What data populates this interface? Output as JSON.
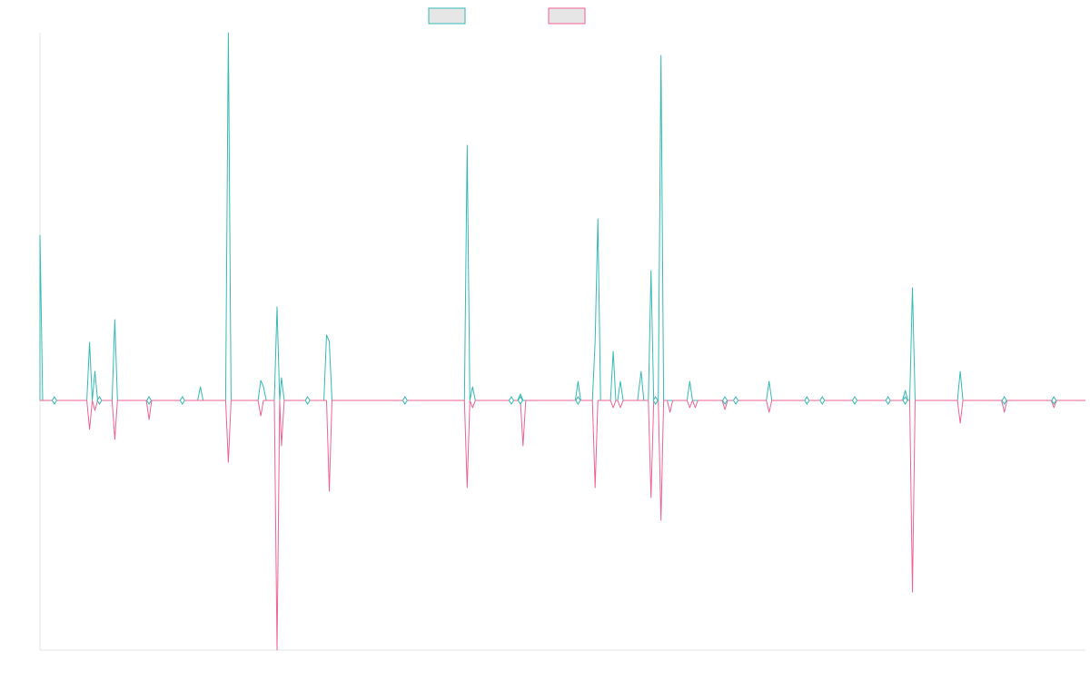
{
  "chart_data": {
    "type": "line",
    "title": "",
    "xlabel": "",
    "ylabel": "",
    "grid": false,
    "legend_position": "top-center",
    "x_range": [
      0,
      1160
    ],
    "ylim": [
      -275,
      405
    ],
    "baseline": 0,
    "series": [
      {
        "name": "",
        "color": "#36b9b5",
        "fill": "#e6e6e6",
        "points": [
          [
            0,
            0
          ],
          [
            0,
            182
          ],
          [
            3,
            0
          ],
          [
            52,
            0
          ],
          [
            55,
            64
          ],
          [
            58,
            0
          ],
          [
            61,
            32
          ],
          [
            64,
            0
          ],
          [
            80,
            0
          ],
          [
            83,
            89
          ],
          [
            86,
            0
          ],
          [
            175,
            0
          ],
          [
            178,
            15
          ],
          [
            181,
            0
          ],
          [
            206,
            0
          ],
          [
            209,
            405
          ],
          [
            212,
            0
          ],
          [
            242,
            0
          ],
          [
            245,
            22
          ],
          [
            248,
            15
          ],
          [
            251,
            0
          ],
          [
            260,
            0
          ],
          [
            263,
            103
          ],
          [
            266,
            0
          ],
          [
            268,
            25
          ],
          [
            271,
            0
          ],
          [
            315,
            0
          ],
          [
            318,
            72
          ],
          [
            321,
            65
          ],
          [
            324,
            0
          ],
          [
            471,
            0
          ],
          [
            474,
            281
          ],
          [
            477,
            0
          ],
          [
            480,
            15
          ],
          [
            483,
            0
          ],
          [
            530,
            0
          ],
          [
            533,
            7
          ],
          [
            536,
            0
          ],
          [
            594,
            0
          ],
          [
            597,
            21
          ],
          [
            600,
            0
          ],
          [
            613,
            0
          ],
          [
            616,
            65
          ],
          [
            619,
            200
          ],
          [
            622,
            0
          ],
          [
            633,
            0
          ],
          [
            636,
            54
          ],
          [
            639,
            0
          ],
          [
            641,
            0
          ],
          [
            644,
            21
          ],
          [
            647,
            0
          ],
          [
            663,
            0
          ],
          [
            667,
            32
          ],
          [
            670,
            0
          ],
          [
            675,
            0
          ],
          [
            678,
            143
          ],
          [
            681,
            0
          ],
          [
            686,
            0
          ],
          [
            689,
            380
          ],
          [
            692,
            0
          ],
          [
            718,
            0
          ],
          [
            721,
            21
          ],
          [
            724,
            0
          ],
          [
            806,
            0
          ],
          [
            809,
            21
          ],
          [
            812,
            0
          ],
          [
            957,
            0
          ],
          [
            960,
            11
          ],
          [
            963,
            0
          ],
          [
            965,
            0
          ],
          [
            968,
            124
          ],
          [
            971,
            0
          ],
          [
            1018,
            0
          ],
          [
            1021,
            32
          ],
          [
            1024,
            0
          ],
          [
            1160,
            0
          ]
        ]
      },
      {
        "name": "",
        "color": "#f06292",
        "fill": "#e6e6e6",
        "points": [
          [
            0,
            0
          ],
          [
            52,
            0
          ],
          [
            55,
            -32
          ],
          [
            58,
            0
          ],
          [
            61,
            -11
          ],
          [
            64,
            0
          ],
          [
            80,
            0
          ],
          [
            83,
            -43
          ],
          [
            86,
            0
          ],
          [
            118,
            0
          ],
          [
            121,
            -21
          ],
          [
            124,
            0
          ],
          [
            206,
            0
          ],
          [
            209,
            -68
          ],
          [
            212,
            0
          ],
          [
            242,
            0
          ],
          [
            245,
            -17
          ],
          [
            248,
            0
          ],
          [
            260,
            0
          ],
          [
            263,
            -275
          ],
          [
            266,
            0
          ],
          [
            268,
            -50
          ],
          [
            271,
            0
          ],
          [
            318,
            0
          ],
          [
            321,
            -100
          ],
          [
            324,
            0
          ],
          [
            471,
            0
          ],
          [
            474,
            -96
          ],
          [
            477,
            0
          ],
          [
            480,
            -8
          ],
          [
            483,
            0
          ],
          [
            533,
            0
          ],
          [
            536,
            -50
          ],
          [
            539,
            0
          ],
          [
            613,
            0
          ],
          [
            616,
            -96
          ],
          [
            619,
            0
          ],
          [
            633,
            0
          ],
          [
            636,
            -8
          ],
          [
            639,
            0
          ],
          [
            641,
            0
          ],
          [
            644,
            -8
          ],
          [
            647,
            0
          ],
          [
            675,
            0
          ],
          [
            678,
            -107
          ],
          [
            681,
            0
          ],
          [
            686,
            0
          ],
          [
            689,
            -132
          ],
          [
            692,
            0
          ],
          [
            696,
            0
          ],
          [
            699,
            -13
          ],
          [
            702,
            0
          ],
          [
            718,
            0
          ],
          [
            721,
            -8
          ],
          [
            724,
            0
          ],
          [
            727,
            -8
          ],
          [
            730,
            0
          ],
          [
            757,
            0
          ],
          [
            760,
            -10
          ],
          [
            763,
            0
          ],
          [
            806,
            0
          ],
          [
            809,
            -13
          ],
          [
            812,
            0
          ],
          [
            965,
            0
          ],
          [
            968,
            -211
          ],
          [
            971,
            0
          ],
          [
            1018,
            0
          ],
          [
            1021,
            -25
          ],
          [
            1024,
            0
          ],
          [
            1067,
            0
          ],
          [
            1070,
            -13
          ],
          [
            1073,
            0
          ],
          [
            1122,
            0
          ],
          [
            1125,
            -8
          ],
          [
            1128,
            0
          ],
          [
            1160,
            0
          ]
        ]
      }
    ],
    "markers": [
      16,
      66,
      121,
      158,
      297,
      405,
      523,
      533,
      597,
      683,
      760,
      772,
      851,
      868,
      904,
      941,
      960,
      1070,
      1125
    ]
  }
}
